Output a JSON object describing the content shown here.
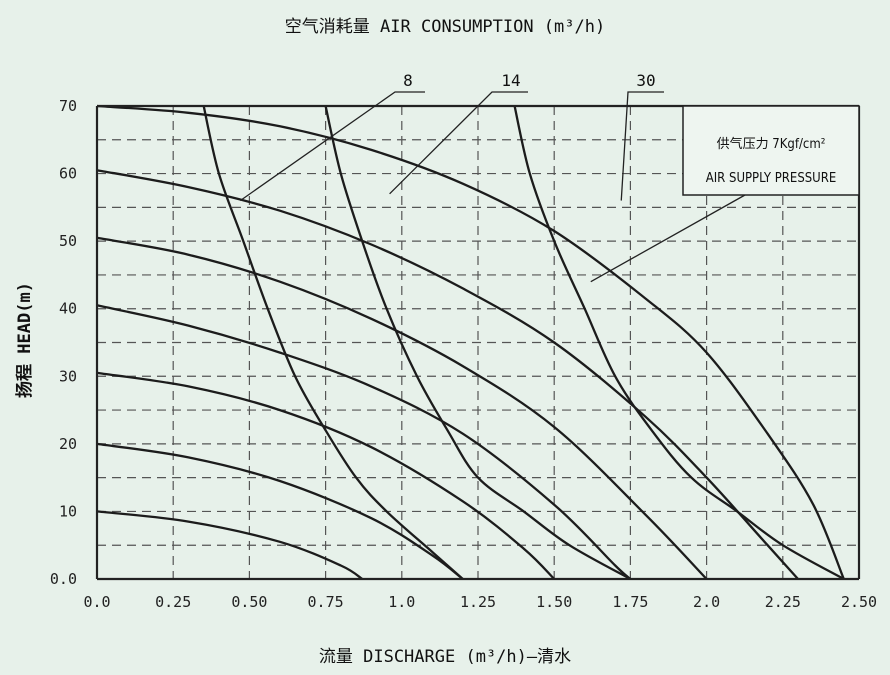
{
  "chart_data": {
    "type": "line",
    "title": "空气消耗量 AIR CONSUMPTION (m³/h)",
    "xlabel": "流量 DISCHARGE (m³/h)—清水",
    "ylabel": "扬程 HEAD(m)",
    "xlim": [
      0,
      2.5
    ],
    "ylim": [
      0,
      70
    ],
    "x_ticks": [
      "0.0",
      "0.25",
      "0.50",
      "0.75",
      "1.0",
      "1.25",
      "1.50",
      "1.75",
      "2.0",
      "2.25",
      "2.50"
    ],
    "y_ticks": [
      "0.0",
      "10",
      "20",
      "30",
      "40",
      "50",
      "60",
      "70"
    ],
    "grid": true,
    "legend": {
      "line1": "供气压力 7Kgf/cm²",
      "line2": "AIR SUPPLY PRESSURE"
    },
    "pressure_curves": [
      {
        "x": [
          0,
          0.3,
          0.6,
          0.8,
          0.87
        ],
        "y": [
          10,
          8.5,
          5.5,
          2,
          0
        ]
      },
      {
        "x": [
          0,
          0.3,
          0.6,
          0.9,
          1.1,
          1.2
        ],
        "y": [
          20,
          18,
          14.5,
          9,
          3.5,
          0
        ]
      },
      {
        "x": [
          0,
          0.3,
          0.6,
          0.9,
          1.2,
          1.4,
          1.5
        ],
        "y": [
          30.5,
          28.5,
          25,
          19.5,
          11.5,
          4.5,
          0
        ]
      },
      {
        "x": [
          0,
          0.3,
          0.6,
          0.9,
          1.2,
          1.5,
          1.7,
          1.75
        ],
        "y": [
          40.5,
          37.5,
          33.5,
          28.5,
          21.5,
          11,
          2,
          0
        ]
      },
      {
        "x": [
          0,
          0.3,
          0.6,
          0.9,
          1.2,
          1.5,
          1.8,
          2.0
        ],
        "y": [
          50.5,
          48,
          44,
          38.5,
          31.5,
          22.5,
          9.5,
          0
        ]
      },
      {
        "x": [
          0,
          0.3,
          0.6,
          0.9,
          1.2,
          1.5,
          1.8,
          2.0,
          2.2,
          2.3
        ],
        "y": [
          60.5,
          58,
          54.5,
          49.5,
          43,
          35,
          24,
          15,
          5,
          0
        ]
      },
      {
        "x": [
          0,
          0.3,
          0.6,
          0.9,
          1.2,
          1.5,
          1.8,
          2.0,
          2.2,
          2.35,
          2.45
        ],
        "y": [
          70,
          69,
          67,
          63.5,
          58.5,
          51.5,
          41.5,
          33.5,
          21.5,
          11,
          0
        ]
      }
    ],
    "air_consumption_curves": [
      {
        "label": "8",
        "x": [
          0.35,
          0.4,
          0.48,
          0.56,
          0.65,
          0.75,
          0.85,
          0.95,
          1.1,
          1.2
        ],
        "y": [
          70,
          60,
          50,
          40,
          30,
          22,
          15,
          10,
          4,
          0
        ]
      },
      {
        "label": "14",
        "x": [
          0.75,
          0.8,
          0.87,
          0.95,
          1.05,
          1.15,
          1.25,
          1.4,
          1.55,
          1.75
        ],
        "y": [
          70,
          60,
          50,
          40,
          30,
          22,
          15,
          10,
          5,
          0
        ]
      },
      {
        "label": "30",
        "x": [
          1.37,
          1.42,
          1.5,
          1.6,
          1.7,
          1.82,
          1.95,
          2.1,
          2.25,
          2.45
        ],
        "y": [
          70,
          60,
          50,
          40,
          30,
          22,
          15,
          10,
          5,
          0
        ]
      }
    ]
  }
}
